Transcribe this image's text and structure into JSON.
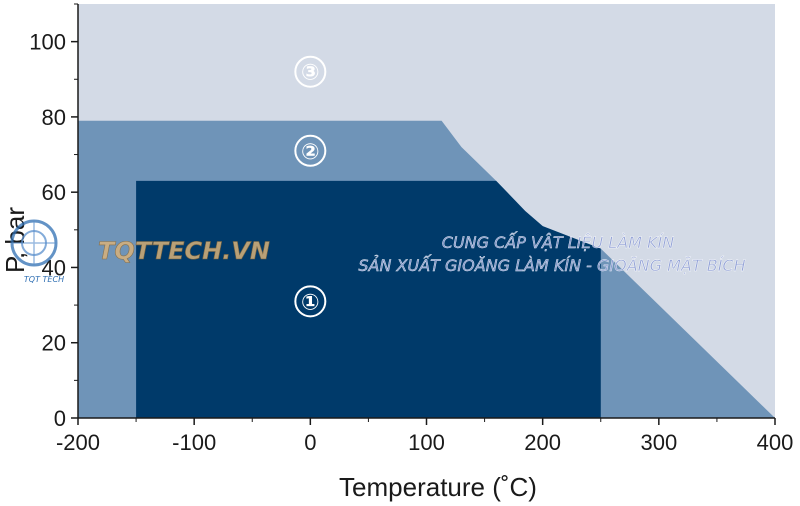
{
  "chart_data": {
    "type": "area",
    "title": "",
    "xlabel": "Temperature (˚C)",
    "ylabel": "P, bar",
    "xlim": [
      -200,
      400
    ],
    "ylim": [
      0,
      110
    ],
    "x_ticks": [
      "-200",
      "-100",
      "0",
      "100",
      "200",
      "300",
      "400"
    ],
    "y_ticks": [
      "0",
      "20",
      "40",
      "60",
      "80",
      "100"
    ],
    "grid": false,
    "regions": [
      {
        "name": "③",
        "color": "#d3dae6",
        "label_at": [
          0,
          92
        ],
        "polygon": [
          [
            -200,
            0
          ],
          [
            -200,
            110
          ],
          [
            400,
            110
          ],
          [
            400,
            0
          ]
        ]
      },
      {
        "name": "②",
        "color": "#6f94b8",
        "label_at": [
          0,
          71
        ],
        "polygon": [
          [
            -200,
            0
          ],
          [
            -200,
            79
          ],
          [
            113,
            79
          ],
          [
            130,
            72
          ],
          [
            160,
            63
          ],
          [
            185,
            55
          ],
          [
            200,
            51
          ],
          [
            250,
            45
          ],
          [
            400,
            0
          ]
        ]
      },
      {
        "name": "①",
        "color": "#003a6a",
        "label_at": [
          0,
          31
        ],
        "polygon": [
          [
            -150,
            0
          ],
          [
            -150,
            63
          ],
          [
            160,
            63
          ],
          [
            185,
            55
          ],
          [
            200,
            51
          ],
          [
            250,
            45
          ],
          [
            250,
            0
          ]
        ]
      }
    ]
  },
  "watermark": {
    "brand": "TQTTECH.VN",
    "line1": "CUNG CẤP VẬT LIỆU LÀM KÍN",
    "line2": "SẢN XUẤT GIOĂNG LÀM KÍN - GIOĂNG MẶT BÍCH",
    "logo_text": "TQT TECH"
  }
}
